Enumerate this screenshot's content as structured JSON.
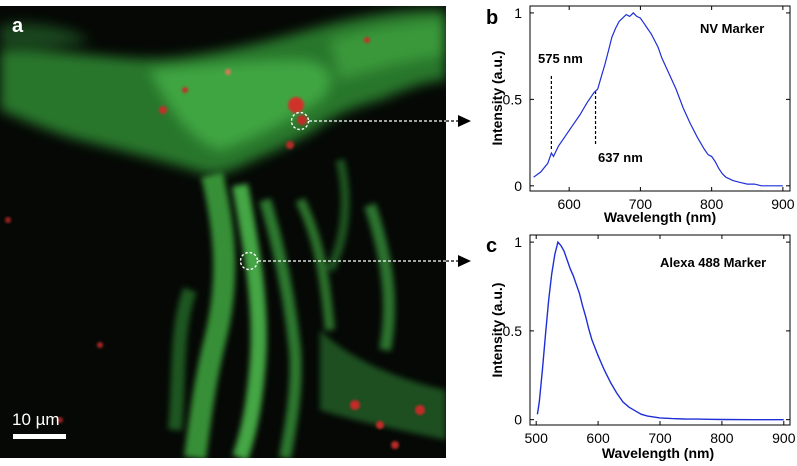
{
  "panels": {
    "a": {
      "letter": "a",
      "scalebar_label": "10 µm"
    },
    "b": {
      "letter": "b"
    },
    "c": {
      "letter": "c"
    }
  },
  "colors": {
    "spectrum_line": "#1f2fd6",
    "image_green": "#3fae3f",
    "image_red": "#c8302a",
    "image_background": "#050805"
  },
  "chart_data": [
    {
      "type": "line",
      "panel": "b",
      "xlabel": "Wavelength (nm)",
      "ylabel": "Intensity (a.u.)",
      "xlim": [
        545,
        910
      ],
      "ylim": [
        -0.03,
        1.04
      ],
      "xticks": [
        600,
        700,
        800,
        900
      ],
      "yticks": [
        0,
        0.5,
        1
      ],
      "ytick_labels": [
        "0",
        "0.5",
        "1"
      ],
      "legend_text": "NV Marker",
      "annotations": [
        {
          "label": "575 nm",
          "x": 575
        },
        {
          "label": "637 nm",
          "x": 637
        }
      ],
      "series": [
        {
          "x": [
            550,
            560,
            570,
            575,
            578,
            585,
            595,
            605,
            615,
            625,
            635,
            640,
            645,
            650,
            655,
            660,
            665,
            670,
            675,
            680,
            685,
            690,
            695,
            700,
            705,
            710,
            715,
            720,
            725,
            730,
            740,
            750,
            760,
            770,
            780,
            790,
            795,
            800,
            805,
            810,
            815,
            820,
            830,
            840,
            850,
            860,
            870,
            880,
            890,
            900
          ],
          "y": [
            0.05,
            0.08,
            0.13,
            0.19,
            0.17,
            0.23,
            0.29,
            0.35,
            0.41,
            0.48,
            0.54,
            0.56,
            0.63,
            0.7,
            0.78,
            0.86,
            0.91,
            0.95,
            0.97,
            0.99,
            0.98,
            1.0,
            0.98,
            0.97,
            0.94,
            0.91,
            0.88,
            0.84,
            0.8,
            0.74,
            0.65,
            0.56,
            0.45,
            0.36,
            0.28,
            0.21,
            0.18,
            0.17,
            0.14,
            0.1,
            0.07,
            0.05,
            0.03,
            0.02,
            0.01,
            0.01,
            0.0,
            0.0,
            0.0,
            0.0
          ]
        }
      ]
    },
    {
      "type": "line",
      "panel": "c",
      "xlabel": "Wavelength (nm)",
      "ylabel": "Intensity (a.u.)",
      "xlim": [
        490,
        910
      ],
      "ylim": [
        -0.03,
        1.04
      ],
      "xticks": [
        500,
        600,
        700,
        800,
        900
      ],
      "yticks": [
        0,
        0.5,
        1
      ],
      "ytick_labels": [
        "0",
        "0.5",
        "1"
      ],
      "legend_text": "Alexa 488 Marker",
      "series": [
        {
          "x": [
            502,
            505,
            510,
            515,
            520,
            525,
            530,
            535,
            540,
            545,
            550,
            555,
            560,
            565,
            570,
            575,
            580,
            585,
            590,
            600,
            610,
            620,
            630,
            640,
            650,
            660,
            670,
            680,
            700,
            720,
            740,
            760,
            780,
            800,
            850,
            900
          ],
          "y": [
            0.03,
            0.1,
            0.28,
            0.48,
            0.67,
            0.82,
            0.93,
            1.0,
            0.98,
            0.95,
            0.9,
            0.85,
            0.81,
            0.76,
            0.71,
            0.64,
            0.58,
            0.51,
            0.45,
            0.36,
            0.28,
            0.21,
            0.15,
            0.1,
            0.07,
            0.05,
            0.03,
            0.02,
            0.01,
            0.006,
            0.004,
            0.003,
            0.002,
            0.001,
            0.0,
            0.0
          ]
        }
      ]
    }
  ]
}
